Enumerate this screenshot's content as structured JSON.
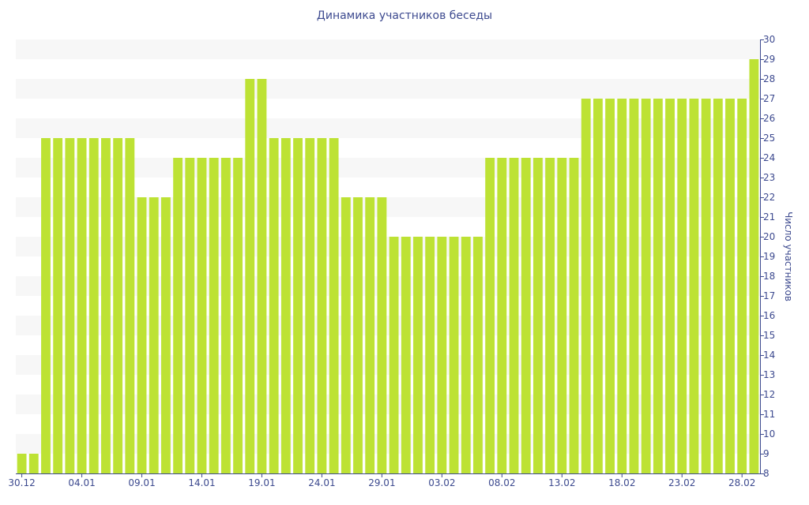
{
  "chart_data": {
    "type": "bar",
    "title": "Динамика участников беседы",
    "xlabel": "",
    "ylabel": "Число участников",
    "ylim": [
      8,
      30
    ],
    "yticks": [
      8,
      9,
      10,
      11,
      12,
      13,
      14,
      15,
      16,
      17,
      18,
      19,
      20,
      21,
      22,
      23,
      24,
      25,
      26,
      27,
      28,
      29,
      30
    ],
    "y_axis_position": "right",
    "grid": "horizontal alternating bands",
    "bar_color": "#bde234",
    "band_color": "#f7f7f7",
    "text_color": "#3d4a8f",
    "x_tick_labels": [
      "30.12",
      "04.01",
      "09.01",
      "14.01",
      "19.01",
      "24.01",
      "29.01",
      "03.02",
      "08.02",
      "13.02",
      "18.02",
      "23.02",
      "28.02"
    ],
    "x_tick_every": 5,
    "values": [
      9,
      9,
      25,
      25,
      25,
      25,
      25,
      25,
      25,
      25,
      22,
      22,
      22,
      24,
      24,
      24,
      24,
      24,
      24,
      28,
      28,
      25,
      25,
      25,
      25,
      25,
      25,
      22,
      22,
      22,
      22,
      20,
      20,
      20,
      20,
      20,
      20,
      20,
      20,
      24,
      24,
      24,
      24,
      24,
      24,
      24,
      24,
      27,
      27,
      27,
      27,
      27,
      27,
      27,
      27,
      27,
      27,
      27,
      27,
      27,
      27,
      29
    ]
  }
}
